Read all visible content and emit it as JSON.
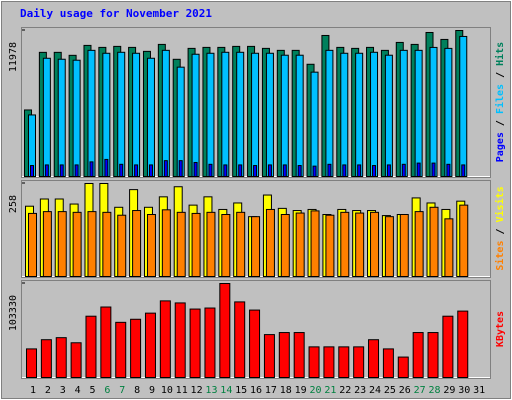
{
  "chart_data": [
    {
      "type": "bar",
      "title": "Daily usage for November 2021",
      "categories": [
        "1",
        "2",
        "3",
        "4",
        "5",
        "6",
        "7",
        "8",
        "9",
        "10",
        "11",
        "12",
        "13",
        "14",
        "15",
        "16",
        "17",
        "18",
        "19",
        "20",
        "21",
        "22",
        "23",
        "24",
        "25",
        "26",
        "27",
        "28",
        "29",
        "30",
        "31"
      ],
      "series": [
        {
          "name": "Hits",
          "color": "#00805c",
          "values": [
            5459,
            10185,
            10185,
            9941,
            10755,
            10592,
            10674,
            10592,
            10266,
            10837,
            9615,
            10511,
            10592,
            10592,
            10674,
            10674,
            10511,
            10348,
            10348,
            9207,
            11570,
            10592,
            10511,
            10592,
            10348,
            10999,
            10837,
            11815,
            11245,
            11978,
            null
          ]
        },
        {
          "name": "Files",
          "color": "#00c0ff",
          "values": [
            5050,
            9700,
            9620,
            9540,
            10350,
            10110,
            10190,
            10110,
            9700,
            10350,
            8970,
            10030,
            10110,
            10190,
            10190,
            10110,
            10110,
            9950,
            9950,
            8560,
            10350,
            10110,
            10110,
            10190,
            9950,
            10350,
            10350,
            10590,
            10510,
            11490,
            null
          ]
        },
        {
          "name": "Pages",
          "color": "#0000ff",
          "values": [
            900,
            950,
            950,
            950,
            1200,
            1400,
            1000,
            950,
            950,
            1300,
            1300,
            1150,
            1000,
            950,
            950,
            900,
            950,
            950,
            900,
            850,
            1000,
            950,
            950,
            900,
            950,
            1000,
            1100,
            1100,
            1000,
            950,
            null
          ]
        }
      ],
      "ylim": [
        0,
        11978
      ],
      "yticks": [
        11978
      ]
    },
    {
      "type": "bar",
      "categories": [
        "1",
        "2",
        "3",
        "4",
        "5",
        "6",
        "7",
        "8",
        "9",
        "10",
        "11",
        "12",
        "13",
        "14",
        "15",
        "16",
        "17",
        "18",
        "19",
        "20",
        "21",
        "22",
        "23",
        "24",
        "25",
        "26",
        "27",
        "28",
        "29",
        "30",
        "31"
      ],
      "series": [
        {
          "name": "Visits",
          "color": "#ffff00",
          "values": [
            195,
            215,
            215,
            201,
            258,
            258,
            192,
            241,
            192,
            221,
            249,
            198,
            221,
            186,
            204,
            166,
            226,
            189,
            183,
            186,
            172,
            186,
            183,
            183,
            169,
            172,
            218,
            204,
            186,
            209,
            null
          ]
        },
        {
          "name": "Sites",
          "color": "#ff8000",
          "values": [
            175,
            180,
            180,
            178,
            180,
            178,
            170,
            183,
            172,
            185,
            178,
            175,
            178,
            172,
            178,
            166,
            186,
            172,
            176,
            182,
            170,
            178,
            176,
            178,
            166,
            172,
            180,
            192,
            160,
            198,
            null
          ]
        }
      ],
      "ylim": [
        0,
        258
      ],
      "yticks": [
        258
      ]
    },
    {
      "type": "bar",
      "categories": [
        "1",
        "2",
        "3",
        "4",
        "5",
        "6",
        "7",
        "8",
        "9",
        "10",
        "11",
        "12",
        "13",
        "14",
        "15",
        "16",
        "17",
        "18",
        "19",
        "20",
        "21",
        "22",
        "23",
        "24",
        "25",
        "26",
        "27",
        "28",
        "29",
        "30",
        "31"
      ],
      "category_colors": [
        "#000000",
        "#000000",
        "#000000",
        "#000000",
        "#000000",
        "#008040",
        "#008040",
        "#000000",
        "#000000",
        "#000000",
        "#000000",
        "#000000",
        "#008040",
        "#008040",
        "#000000",
        "#000000",
        "#000000",
        "#000000",
        "#000000",
        "#008040",
        "#008040",
        "#000000",
        "#000000",
        "#000000",
        "#000000",
        "#000000",
        "#008040",
        "#008040",
        "#000000",
        "#000000",
        "#000000"
      ],
      "series": [
        {
          "name": "KBytes",
          "color": "#ff0000",
          "values": [
            31444,
            41551,
            43797,
            38182,
            67380,
            77487,
            60642,
            64011,
            70749,
            84225,
            81979,
            75241,
            76364,
            103330,
            83102,
            74118,
            47166,
            49412,
            49412,
            33690,
            33690,
            33690,
            33690,
            41551,
            31444,
            22460,
            49412,
            49412,
            67380,
            72995,
            null
          ]
        }
      ],
      "ylim": [
        0,
        103330
      ],
      "yticks": [
        103330
      ]
    }
  ]
}
